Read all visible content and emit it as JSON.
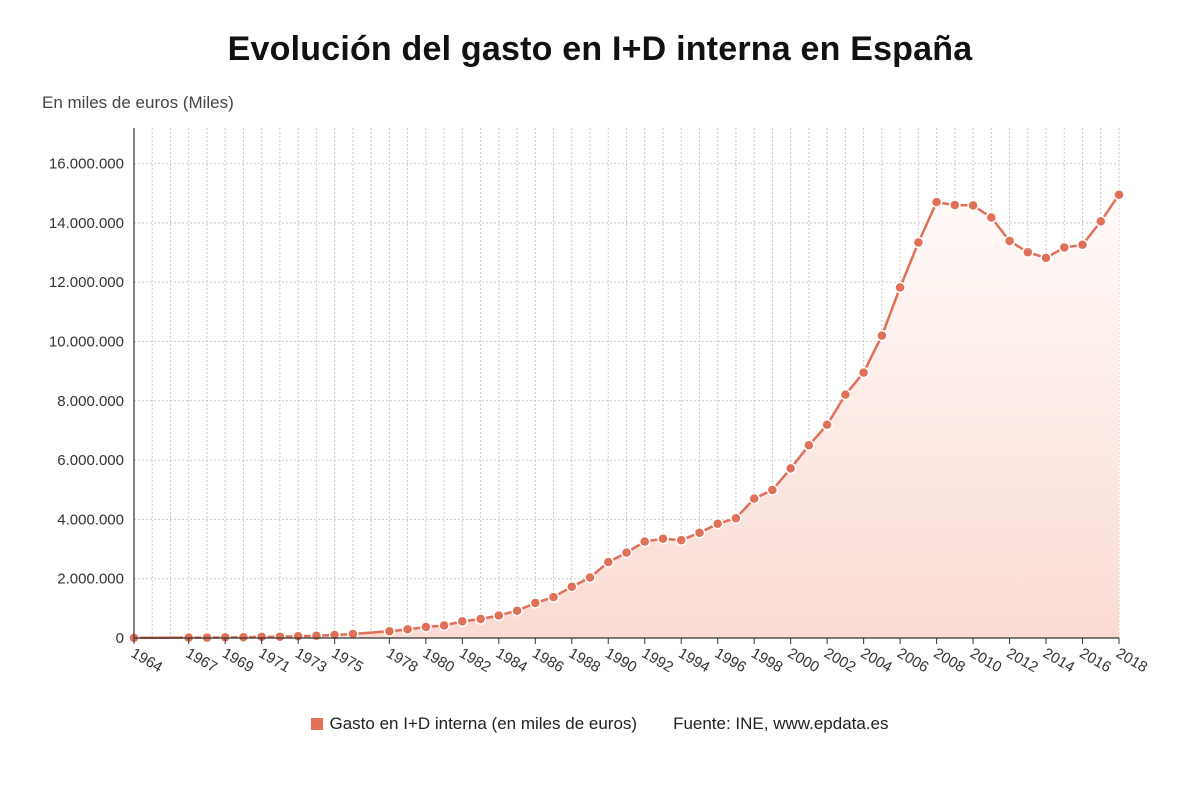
{
  "title": "Evolución del gasto en I+D interna en España",
  "unit_label": "En miles de euros (Miles)",
  "legend": {
    "series_label": "Gasto en I+D interna (en miles de euros)",
    "source": "Fuente: INE, www.epdata.es"
  },
  "colors": {
    "line": "#e07058",
    "fill_top": "#fdecea",
    "fill_bottom": "#fbd9d3",
    "grid": "#c8c8c8"
  },
  "chart_data": {
    "type": "area",
    "title": "Evolución del gasto en I+D interna en España",
    "ylabel": "En miles de euros (Miles)",
    "ylim": [
      0,
      17200000
    ],
    "xlim": [
      1964,
      2018
    ],
    "grid": true,
    "legend_position": "bottom",
    "y_ticks": [
      0,
      2000000,
      4000000,
      6000000,
      8000000,
      10000000,
      12000000,
      14000000,
      16000000
    ],
    "y_tick_labels": [
      "0",
      "2.000.000",
      "4.000.000",
      "6.000.000",
      "8.000.000",
      "10.000.000",
      "12.000.000",
      "14.000.000",
      "16.000.000"
    ],
    "x_tick_labels": [
      "1964",
      "1967",
      "1969",
      "1971",
      "1973",
      "1975",
      "1978",
      "1980",
      "1982",
      "1984",
      "1986",
      "1988",
      "1990",
      "1992",
      "1994",
      "1996",
      "1998",
      "2000",
      "2002",
      "2004",
      "2006",
      "2008",
      "2010",
      "2012",
      "2014",
      "2016",
      "2018"
    ],
    "series": [
      {
        "name": "Gasto en I+D interna (en miles de euros)",
        "x": [
          1964,
          1967,
          1968,
          1969,
          1970,
          1971,
          1972,
          1973,
          1974,
          1975,
          1976,
          1978,
          1979,
          1980,
          1981,
          1982,
          1983,
          1984,
          1985,
          1986,
          1987,
          1988,
          1989,
          1990,
          1991,
          1992,
          1993,
          1994,
          1995,
          1996,
          1997,
          1998,
          1999,
          2000,
          2001,
          2002,
          2003,
          2004,
          2005,
          2006,
          2007,
          2008,
          2009,
          2010,
          2011,
          2012,
          2013,
          2014,
          2015,
          2016,
          2017,
          2018
        ],
        "values": [
          5000,
          12000,
          15000,
          20000,
          28000,
          36000,
          45000,
          57000,
          74000,
          100000,
          135000,
          230000,
          290000,
          370000,
          420000,
          560000,
          640000,
          760000,
          920000,
          1180000,
          1380000,
          1730000,
          2040000,
          2560000,
          2880000,
          3250000,
          3350000,
          3300000,
          3550000,
          3850000,
          4040000,
          4700000,
          4990000,
          5720000,
          6500000,
          7190000,
          8210000,
          8950000,
          10200000,
          11820000,
          13340000,
          14700000,
          14600000,
          14590000,
          14180000,
          13390000,
          13010000,
          12820000,
          13170000,
          13260000,
          14050000,
          14950000
        ]
      }
    ]
  }
}
